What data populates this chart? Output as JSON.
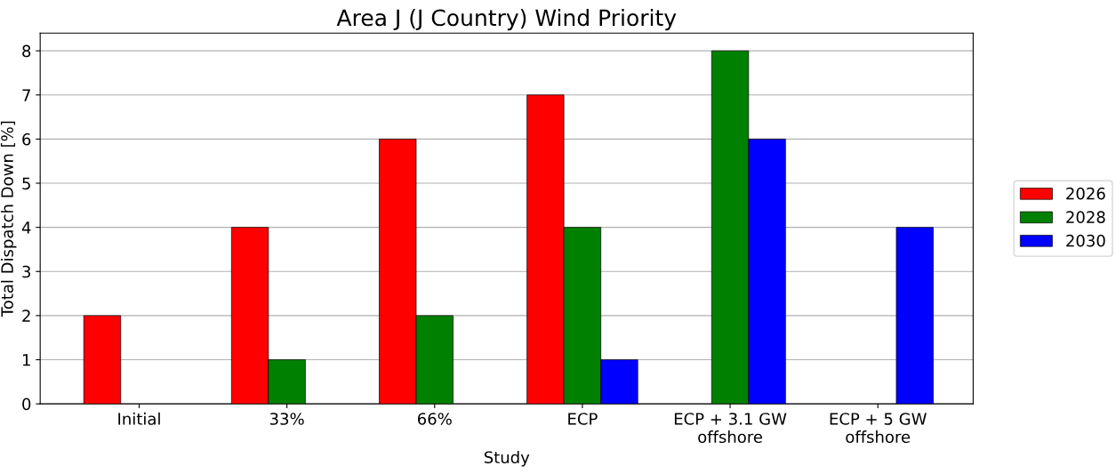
{
  "chart_data": {
    "type": "bar",
    "title": "Area J (J Country) Wind Priority",
    "xlabel": "Study",
    "ylabel": "Total Dispatch Down [%]",
    "categories": [
      "Initial",
      "33%",
      "66%",
      "ECP",
      "ECP + 3.1 GW\noffshore",
      "ECP + 5 GW\noffshore"
    ],
    "series": [
      {
        "name": "2026",
        "color": "#ff0000",
        "values": [
          2,
          4,
          6,
          7,
          null,
          null
        ]
      },
      {
        "name": "2028",
        "color": "#008000",
        "values": [
          null,
          1,
          2,
          4,
          8,
          null
        ]
      },
      {
        "name": "2030",
        "color": "#0000ff",
        "values": [
          null,
          null,
          null,
          1,
          6,
          4
        ]
      }
    ],
    "ylim": [
      0,
      8.4
    ],
    "yticks": [
      0,
      1,
      2,
      3,
      4,
      5,
      6,
      7,
      8
    ],
    "grid": "y",
    "legend": "right"
  }
}
